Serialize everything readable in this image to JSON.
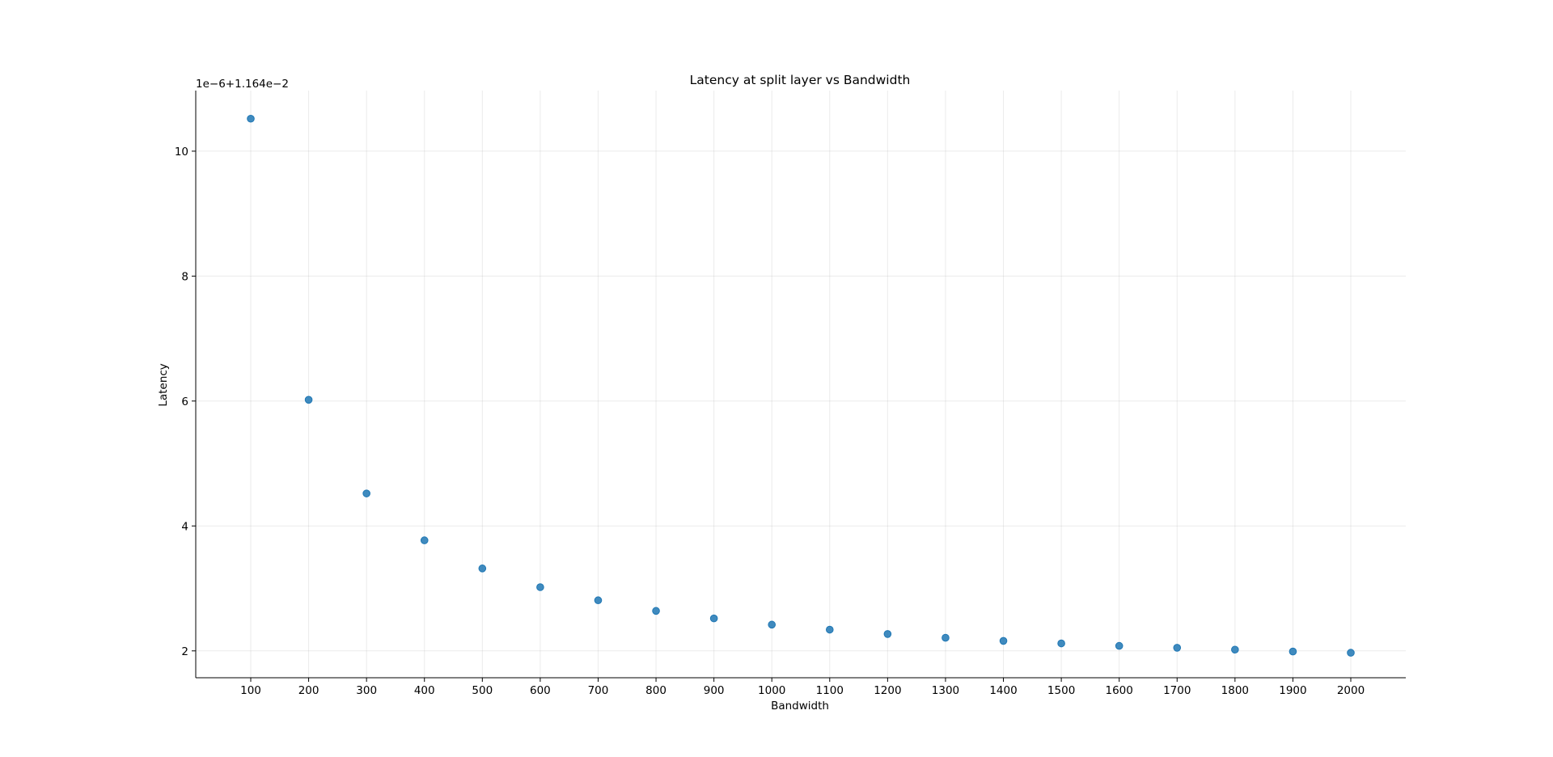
{
  "chart_data": {
    "type": "scatter",
    "title": "Latency at split layer vs Bandwidth",
    "xlabel": "Bandwidth",
    "ylabel": "Latency",
    "y_offset_label": "1e−6+1.164e−2",
    "x_ticks": [
      100,
      200,
      300,
      400,
      500,
      600,
      700,
      800,
      900,
      1000,
      1100,
      1200,
      1300,
      1400,
      1500,
      1600,
      1700,
      1800,
      1900,
      2000
    ],
    "y_ticks": [
      2,
      4,
      6,
      8,
      10
    ],
    "xlim": [
      5,
      2095
    ],
    "ylim": [
      1.57,
      10.97
    ],
    "grid": true,
    "point_color": "#1f77b4",
    "series": [
      {
        "x": [
          100,
          200,
          300,
          400,
          500,
          600,
          700,
          800,
          900,
          1000,
          1100,
          1200,
          1300,
          1400,
          1500,
          1600,
          1700,
          1800,
          1900,
          2000
        ],
        "y": [
          10.52,
          6.02,
          4.52,
          3.77,
          3.32,
          3.02,
          2.81,
          2.64,
          2.52,
          2.42,
          2.34,
          2.27,
          2.21,
          2.16,
          2.12,
          2.08,
          2.05,
          2.02,
          1.99,
          1.97
        ]
      }
    ]
  }
}
